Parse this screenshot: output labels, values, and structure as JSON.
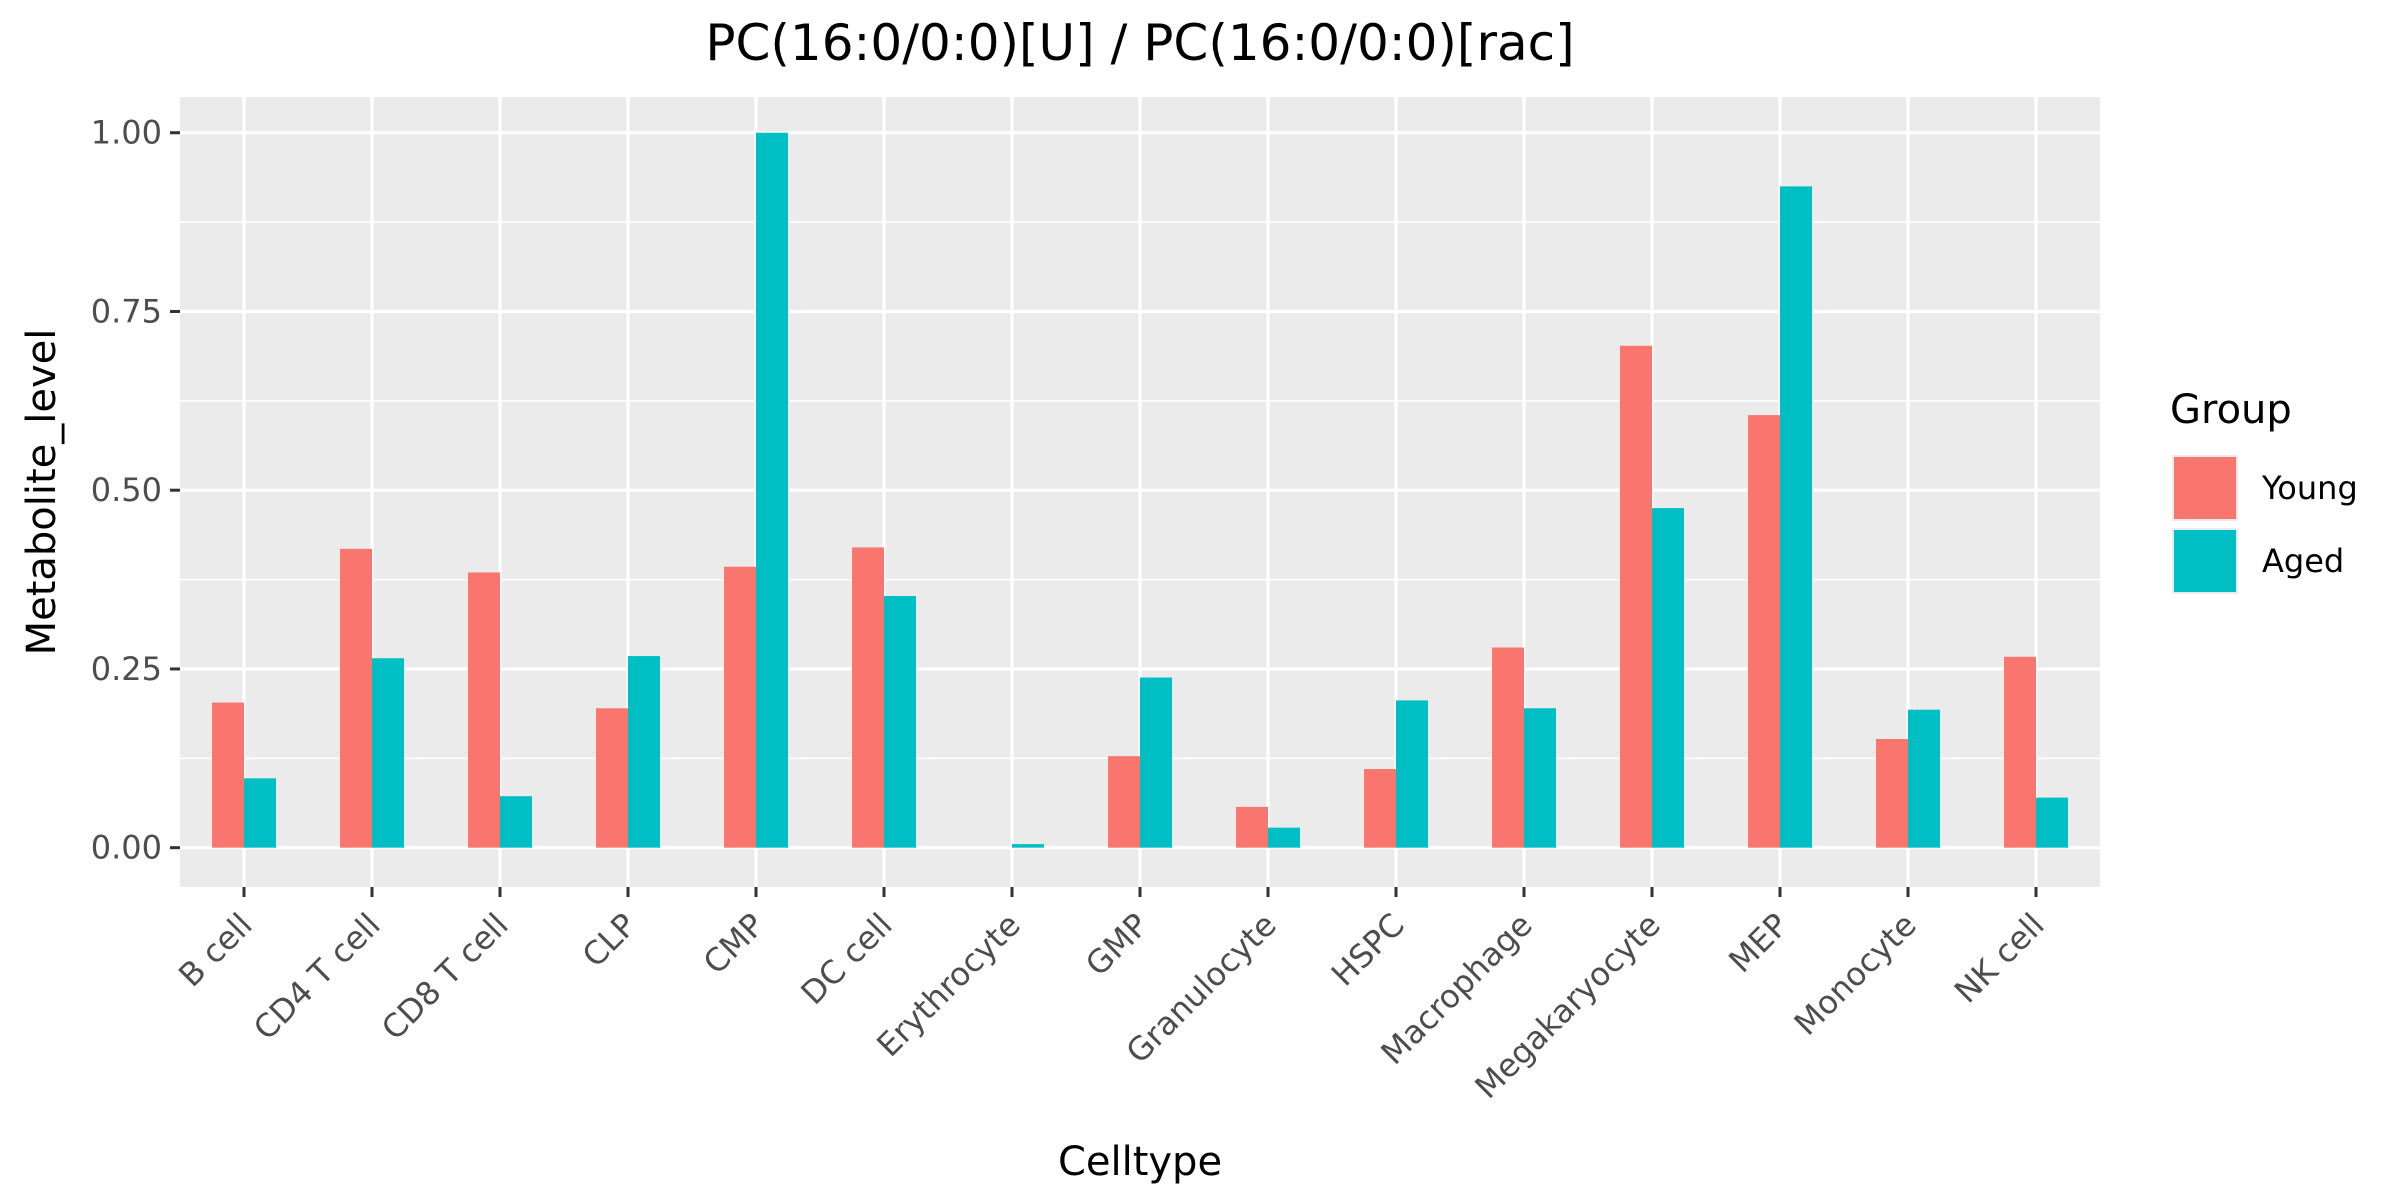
{
  "chart_data": {
    "type": "bar",
    "title": "PC(16:0/0:0)[U] / PC(16:0/0:0)[rac]",
    "xlabel": "Celltype",
    "ylabel": "Metabolite_level",
    "ylim": [
      -0.055,
      1.05
    ],
    "yticks": [
      0.0,
      0.25,
      0.5,
      0.75,
      1.0
    ],
    "ytick_labels": [
      "0.00",
      "0.25",
      "0.50",
      "0.75",
      "1.00"
    ],
    "grid": true,
    "legend_position": "right",
    "legend_title": "Group",
    "categories": [
      "B cell",
      "CD4 T cell",
      "CD8 T cell",
      "CLP",
      "CMP",
      "DC cell",
      "Erythrocyte",
      "GMP",
      "Granulocyte",
      "HSPC",
      "Macrophage",
      "Megakaryocyte",
      "MEP",
      "Monocyte",
      "NK cell"
    ],
    "series": [
      {
        "name": "Young",
        "color": "#f8766d",
        "values": [
          0.203,
          0.418,
          0.385,
          0.195,
          0.393,
          0.42,
          0.0,
          0.128,
          0.057,
          0.11,
          0.28,
          0.702,
          0.605,
          0.152,
          0.267
        ]
      },
      {
        "name": "Aged",
        "color": "#00bfc4",
        "values": [
          0.097,
          0.265,
          0.072,
          0.268,
          1.0,
          0.352,
          0.005,
          0.238,
          0.028,
          0.206,
          0.195,
          0.475,
          0.925,
          0.193,
          0.07
        ]
      }
    ]
  }
}
